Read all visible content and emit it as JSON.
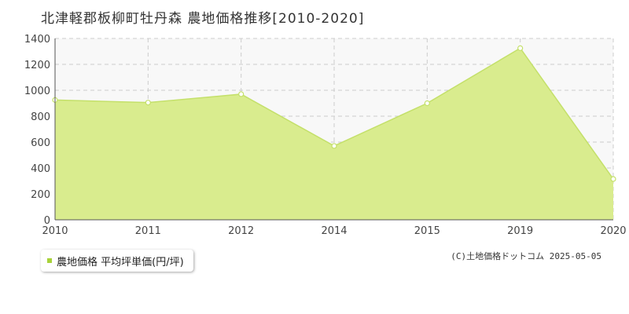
{
  "title": "北津軽郡板柳町牡丹森 農地価格推移[2010-2020]",
  "legend": {
    "label": "農地価格 平均坪単価(円/坪)"
  },
  "copyright": "(C)土地価格ドットコム 2025-05-05",
  "colors": {
    "fill": "#d9ec8e",
    "line": "#c4e06a",
    "point_fill": "#ffffff",
    "legend_swatch": "#a8d23a",
    "plot_bg": "#f8f8f8",
    "grid": "#cccccc"
  },
  "chart_data": {
    "type": "area",
    "title": "北津軽郡板柳町牡丹森 農地価格推移[2010-2020]",
    "categories": [
      "2010",
      "2011",
      "2012",
      "2014",
      "2015",
      "2019",
      "2020"
    ],
    "series": [
      {
        "name": "農地価格 平均坪単価(円/坪)",
        "values": [
          925,
          905,
          970,
          570,
          900,
          1325,
          315
        ]
      }
    ],
    "yticks": [
      0,
      200,
      400,
      600,
      800,
      1000,
      1200,
      1400
    ],
    "ylim": [
      0,
      1400
    ],
    "grid": true,
    "legend_position": "bottom-left"
  }
}
